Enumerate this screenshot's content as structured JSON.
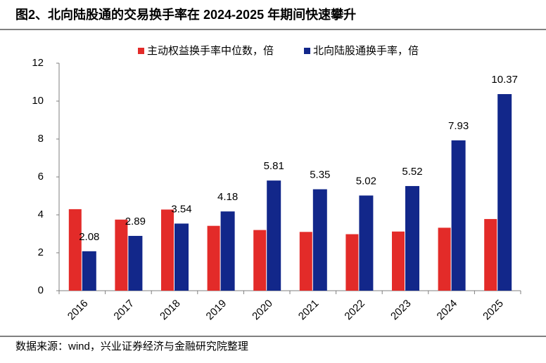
{
  "chart_data": {
    "type": "bar",
    "title": "图2、北向陆股通的交易换手率在 2024-2025 年期间快速攀升",
    "source": "数据来源：wind，兴业证券经济与金融研究院整理",
    "categories": [
      "2016",
      "2017",
      "2018",
      "2019",
      "2020",
      "2021",
      "2022",
      "2023",
      "2024",
      "2025"
    ],
    "series": [
      {
        "name": "主动权益换手率中位数，倍",
        "color": "#e32b29",
        "values": [
          4.3,
          3.75,
          4.28,
          3.42,
          3.2,
          3.1,
          2.98,
          3.12,
          3.32,
          3.78
        ]
      },
      {
        "name": "北向陆股通换手率，倍",
        "color": "#12278a",
        "values": [
          2.08,
          2.89,
          3.54,
          4.18,
          5.81,
          5.35,
          5.02,
          5.52,
          7.93,
          10.37
        ],
        "data_labels": true
      }
    ],
    "ylim": [
      0,
      12
    ],
    "yticks": [
      0,
      2,
      4,
      6,
      8,
      10,
      12
    ],
    "grid": false,
    "legend": "top"
  }
}
